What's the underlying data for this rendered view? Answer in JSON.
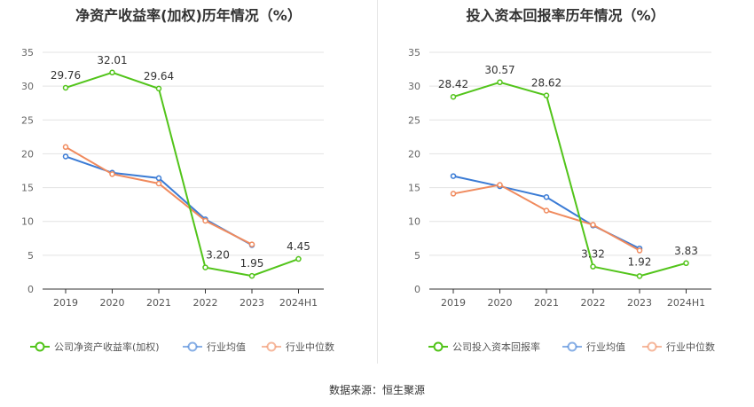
{
  "source": "数据来源：恒生聚源",
  "chart_data": [
    {
      "type": "line",
      "title": "净资产收益率(加权)历年情况（%）",
      "categories": [
        "2019",
        "2020",
        "2021",
        "2022",
        "2023",
        "2024H1"
      ],
      "ylim": [
        0,
        35
      ],
      "yticks": [
        0,
        5,
        10,
        15,
        20,
        25,
        30,
        35
      ],
      "grid": true,
      "legend_position": "bottom",
      "series": [
        {
          "name": "公司净资产收益率(加权)",
          "color": "#52c41a",
          "values": [
            29.76,
            32.01,
            29.64,
            3.2,
            1.95,
            4.45
          ],
          "labels": [
            "29.76",
            "32.01",
            "29.64",
            "3.20",
            "1.95",
            "4.45"
          ]
        },
        {
          "name": "行业均值",
          "color": "#3a7bd5",
          "values": [
            19.6,
            17.2,
            16.4,
            10.3,
            6.5,
            null
          ]
        },
        {
          "name": "行业中位数",
          "color": "#f08a5d",
          "values": [
            21.0,
            17.0,
            15.6,
            10.1,
            6.6,
            null
          ]
        }
      ]
    },
    {
      "type": "line",
      "title": "投入资本回报率历年情况（%）",
      "categories": [
        "2019",
        "2020",
        "2021",
        "2022",
        "2023",
        "2024H1"
      ],
      "ylim": [
        0,
        35
      ],
      "yticks": [
        0,
        5,
        10,
        15,
        20,
        25,
        30,
        35
      ],
      "grid": true,
      "legend_position": "bottom",
      "series": [
        {
          "name": "公司投入资本回报率",
          "color": "#52c41a",
          "values": [
            28.42,
            30.57,
            28.62,
            3.32,
            1.92,
            3.83
          ],
          "labels": [
            "28.42",
            "30.57",
            "28.62",
            "3.32",
            "1.92",
            "3.83"
          ]
        },
        {
          "name": "行业均值",
          "color": "#3a7bd5",
          "values": [
            16.7,
            15.2,
            13.6,
            9.4,
            6.0,
            null
          ]
        },
        {
          "name": "行业中位数",
          "color": "#f08a5d",
          "values": [
            14.1,
            15.4,
            11.6,
            9.5,
            5.7,
            null
          ]
        }
      ]
    }
  ]
}
